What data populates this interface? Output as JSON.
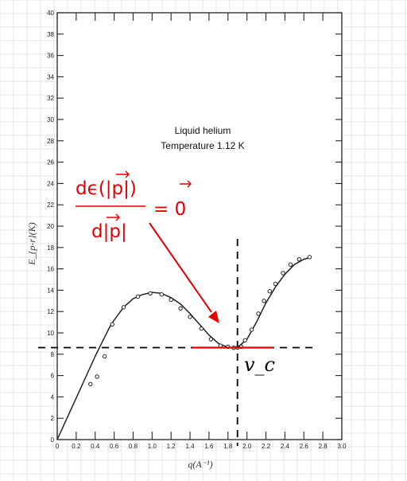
{
  "chart_data": {
    "type": "line",
    "title": "",
    "annotations": [
      "Liquid helium",
      "Temperature 1.12 K"
    ],
    "xlabel": "q(A⁻¹)",
    "ylabel": "E_{p-r}(K)",
    "xlim": [
      0,
      3.0
    ],
    "ylim": [
      0,
      40
    ],
    "x_ticks": [
      "0",
      "0.2",
      "0.4",
      "0.6",
      "0.8",
      "1.0",
      "1.2",
      "1.4",
      "1.6",
      "1.8",
      "2.0",
      "2.2",
      "2.4",
      "2.6",
      "2.8",
      "3.0"
    ],
    "y_ticks": [
      "0",
      "2",
      "4",
      "6",
      "8",
      "10",
      "12",
      "14",
      "16",
      "18",
      "20",
      "22",
      "24",
      "26",
      "28",
      "30",
      "32",
      "34",
      "36",
      "38",
      "40"
    ],
    "grid": false,
    "series": [
      {
        "type": "points",
        "x": [
          0.35,
          0.42,
          0.5,
          0.58,
          0.7,
          0.85,
          0.98,
          1.1,
          1.2,
          1.3,
          1.4,
          1.52,
          1.62,
          1.72,
          1.8,
          1.86,
          1.9,
          1.94,
          1.98,
          2.05,
          2.12,
          2.18,
          2.24,
          2.3,
          2.38,
          2.46,
          2.55,
          2.66
        ],
        "y": [
          5.2,
          5.9,
          7.8,
          10.8,
          12.4,
          13.4,
          13.7,
          13.6,
          13.1,
          12.3,
          11.5,
          10.4,
          9.4,
          8.8,
          8.7,
          8.6,
          8.62,
          8.7,
          9.3,
          10.3,
          11.8,
          13.0,
          13.9,
          14.6,
          15.6,
          16.4,
          16.9,
          17.1
        ]
      },
      {
        "type": "curve",
        "x": [
          0,
          0.2,
          0.4,
          0.55,
          0.6,
          0.7,
          0.8,
          0.9,
          1.0,
          1.1,
          1.2,
          1.3,
          1.4,
          1.5,
          1.6,
          1.7,
          1.8,
          1.9,
          2.0,
          2.1,
          2.2,
          2.3,
          2.4,
          2.5,
          2.6,
          2.68
        ],
        "y": [
          0,
          3.9,
          7.8,
          10.5,
          11.2,
          12.4,
          13.2,
          13.6,
          13.8,
          13.7,
          13.3,
          12.7,
          11.8,
          10.8,
          9.8,
          9.0,
          8.65,
          8.62,
          9.4,
          11.0,
          12.8,
          14.3,
          15.5,
          16.4,
          16.9,
          17.1
        ]
      }
    ],
    "overlay": {
      "critical_x": 1.9,
      "critical_y": 8.62,
      "tangent_x": [
        1.42,
        2.28
      ],
      "label_vc": "v_c",
      "equation_numerator": "dϵ(|p|)",
      "equation_denominator": "d|p|",
      "equation_rhs": "= 0",
      "accent_color": "#e00000"
    }
  }
}
